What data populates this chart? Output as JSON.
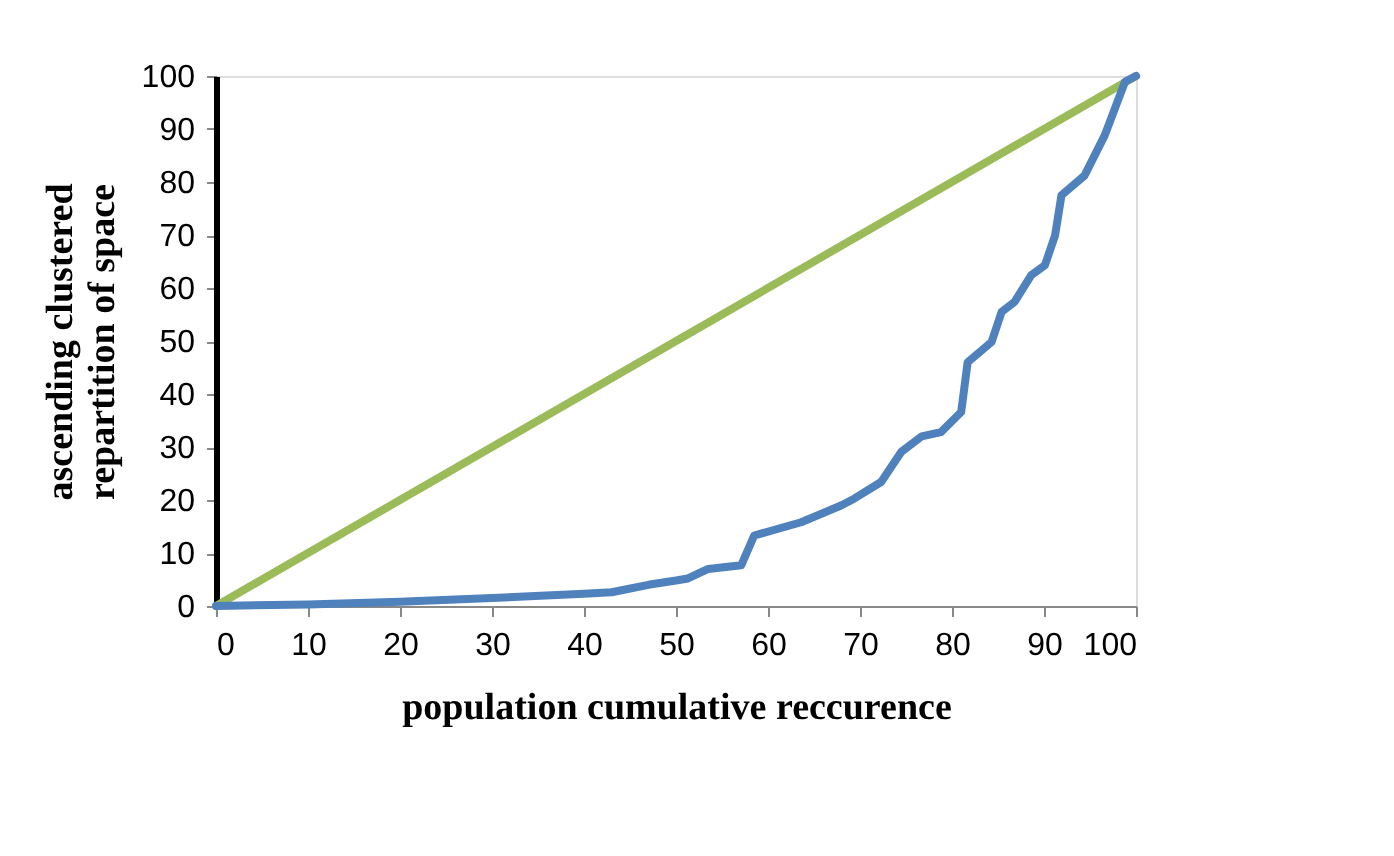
{
  "chart_data": {
    "type": "line",
    "xlabel": "population cumulative reccurence",
    "ylabel": "ascending clustered\nrepartition of space",
    "xlim": [
      0,
      100
    ],
    "xticks": [
      0,
      10,
      20,
      30,
      40,
      50,
      60,
      70,
      80,
      90,
      100
    ],
    "ylim": [
      0,
      100
    ],
    "yticks": [
      0,
      10,
      20,
      30,
      40,
      50,
      60,
      70,
      80,
      90,
      100
    ],
    "grid": false,
    "marker": "none",
    "line_style": "solid",
    "series": [
      {
        "color": "#9bbb59",
        "x": [
          0,
          100
        ],
        "values": [
          0,
          100
        ]
      },
      {
        "color": "#4f81bd",
        "x": [
          0,
          10,
          20,
          30,
          40,
          43,
          47,
          50,
          51.3,
          53.5,
          57.1,
          58.5,
          63.6,
          68.0,
          69.4,
          72.3,
          74.5,
          76.7,
          78.8,
          81.0,
          81.7,
          84.3,
          85.4,
          86.8,
          88.6,
          90.1,
          91.2,
          91.9,
          94.4,
          96.6,
          98.8,
          100
        ],
        "values": [
          0,
          0.3,
          0.8,
          1.5,
          2.3,
          2.6,
          4.0,
          4.8,
          5.2,
          7.0,
          7.7,
          13.3,
          15.8,
          19.0,
          20.3,
          23.4,
          29.1,
          32.0,
          32.8,
          36.6,
          46.0,
          49.8,
          55.5,
          57.4,
          62.4,
          64.3,
          69.9,
          77.5,
          81.2,
          88.8,
          98.9,
          100
        ]
      }
    ]
  }
}
